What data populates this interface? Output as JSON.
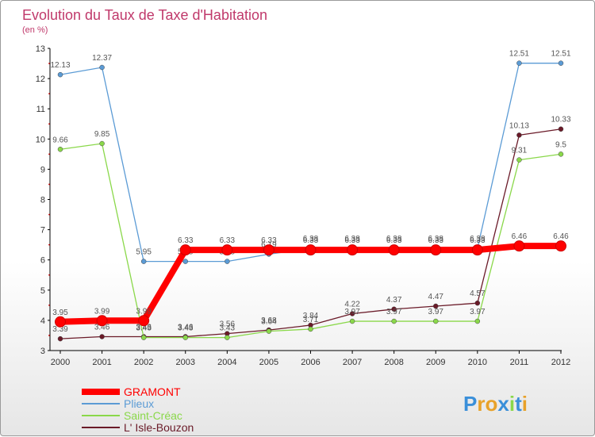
{
  "chart_data": {
    "type": "line",
    "title": "Evolution du Taux de Taxe d'Habitation",
    "subtitle": "(en %)",
    "x": [
      "2000",
      "2001",
      "2002",
      "2003",
      "2004",
      "2005",
      "2006",
      "2007",
      "2008",
      "2009",
      "2010",
      "2011",
      "2012"
    ],
    "ylim": [
      3,
      13
    ],
    "yticks": [
      3,
      4,
      5,
      6,
      7,
      8,
      9,
      10,
      11,
      12,
      13
    ],
    "grid": false,
    "legend": "bottom-left",
    "series": [
      {
        "name": "L' Isle-Bouzon",
        "color": "#6a1a28",
        "values": [
          3.39,
          3.46,
          3.46,
          3.46,
          3.56,
          3.68,
          3.84,
          4.22,
          4.37,
          4.47,
          4.57,
          10.13,
          10.33
        ],
        "labels": [
          "3.39",
          "3.46",
          "3.46",
          "3.46",
          "3.56",
          "3.68",
          "3.84",
          "4.22",
          "4.37",
          "4.47",
          "4.57",
          "10.13",
          "10.33"
        ]
      },
      {
        "name": "Saint-Créac",
        "color": "#8ad84a",
        "values": [
          9.66,
          9.85,
          3.43,
          3.43,
          3.43,
          3.64,
          3.71,
          3.97,
          3.97,
          3.97,
          3.97,
          9.31,
          9.5
        ],
        "labels": [
          "9.66",
          "9.85",
          "3.43",
          "3.43",
          "3.43",
          "3.64",
          "3.71",
          "3.97",
          "3.97",
          "3.97",
          "3.97",
          "9.31",
          "9.5"
        ]
      },
      {
        "name": "Plieux",
        "color": "#5b9bd5",
        "values": [
          12.13,
          12.37,
          5.95,
          5.95,
          5.95,
          6.19,
          6.38,
          6.38,
          6.38,
          6.38,
          6.38,
          12.51,
          12.51
        ],
        "labels": [
          "12.13",
          "12.37",
          "5.95",
          "5.95",
          "5.95",
          "6.19",
          "6.38",
          "6.38",
          "6.38",
          "6.38",
          "6.38",
          "12.51",
          "12.51"
        ]
      },
      {
        "name": "GRAMONT",
        "color": "#ff0000",
        "values": [
          3.95,
          3.99,
          3.99,
          6.33,
          6.33,
          6.33,
          6.33,
          6.33,
          6.33,
          6.33,
          6.33,
          6.46,
          6.46
        ],
        "labels": [
          "3.95",
          "3.99",
          "3.99",
          "6.33",
          "6.33",
          "6.33",
          "6.33",
          "6.33",
          "6.33",
          "6.33",
          "6.33",
          "6.46",
          "6.46"
        ]
      }
    ],
    "legend_order": [
      "GRAMONT",
      "Plieux",
      "Saint-Créac",
      "L' Isle-Bouzon"
    ]
  },
  "logo": {
    "text": "Proxiti",
    "letter_colors": [
      "#3a8fd9",
      "#e8a22a",
      "#e8a22a",
      "#3a8fd9",
      "#8ad84a",
      "#3a8fd9",
      "#e8a22a"
    ]
  }
}
